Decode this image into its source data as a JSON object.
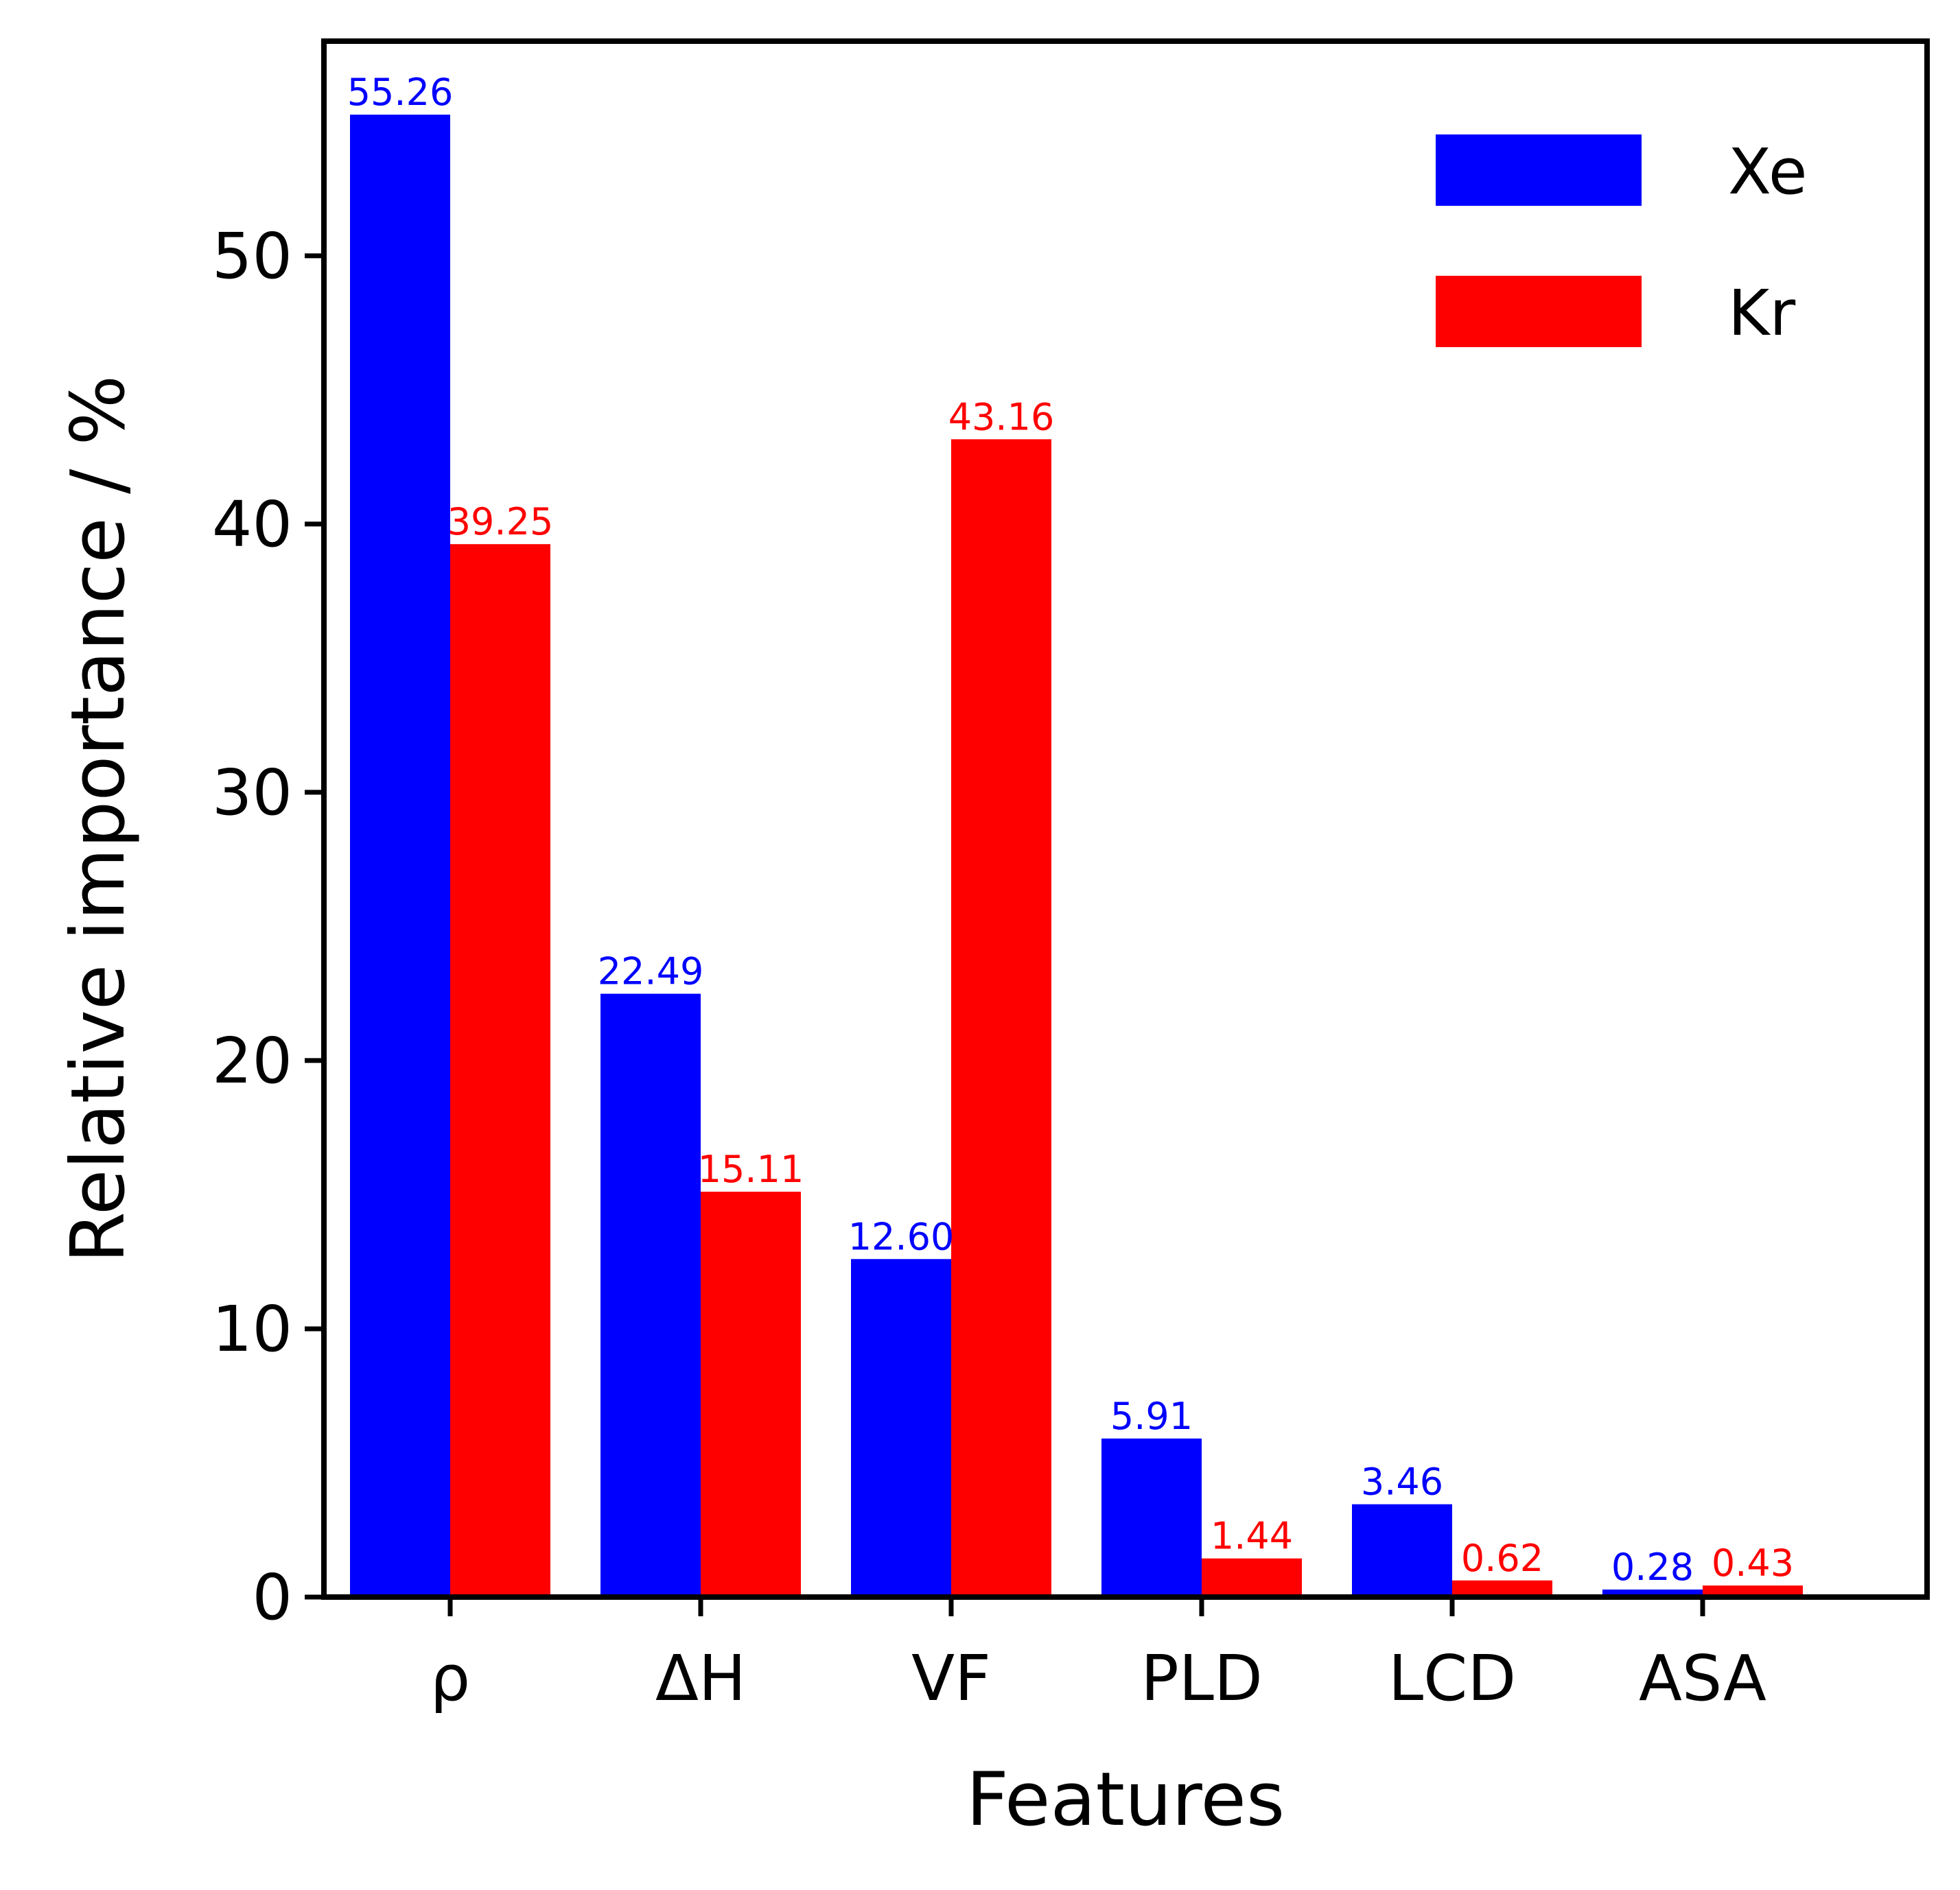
{
  "chart_data": {
    "type": "bar",
    "title": "",
    "xlabel": "Features",
    "ylabel": "Relative importance / %",
    "categories": [
      "ρ",
      "ΔH",
      "VF",
      "PLD",
      "LCD",
      "ASA"
    ],
    "series": [
      {
        "name": "Xe",
        "color": "#0000ff",
        "values": [
          55.26,
          22.49,
          12.6,
          5.91,
          3.46,
          0.28
        ],
        "labels": [
          "55.26",
          "22.49",
          "12.60",
          "5.91",
          "3.46",
          "0.28"
        ]
      },
      {
        "name": "Kr",
        "color": "#ff0000",
        "values": [
          39.25,
          15.11,
          43.16,
          1.44,
          0.62,
          0.43
        ],
        "labels": [
          "39.25",
          "15.11",
          "43.16",
          "1.44",
          "0.62",
          "0.43"
        ]
      }
    ],
    "ylim": [
      0,
      58
    ],
    "yticks": [
      0,
      10,
      20,
      30,
      40,
      50
    ],
    "ytick_labels": [
      "0",
      "10",
      "20",
      "30",
      "40",
      "50"
    ],
    "grid": false,
    "legend_position": "top-right"
  }
}
